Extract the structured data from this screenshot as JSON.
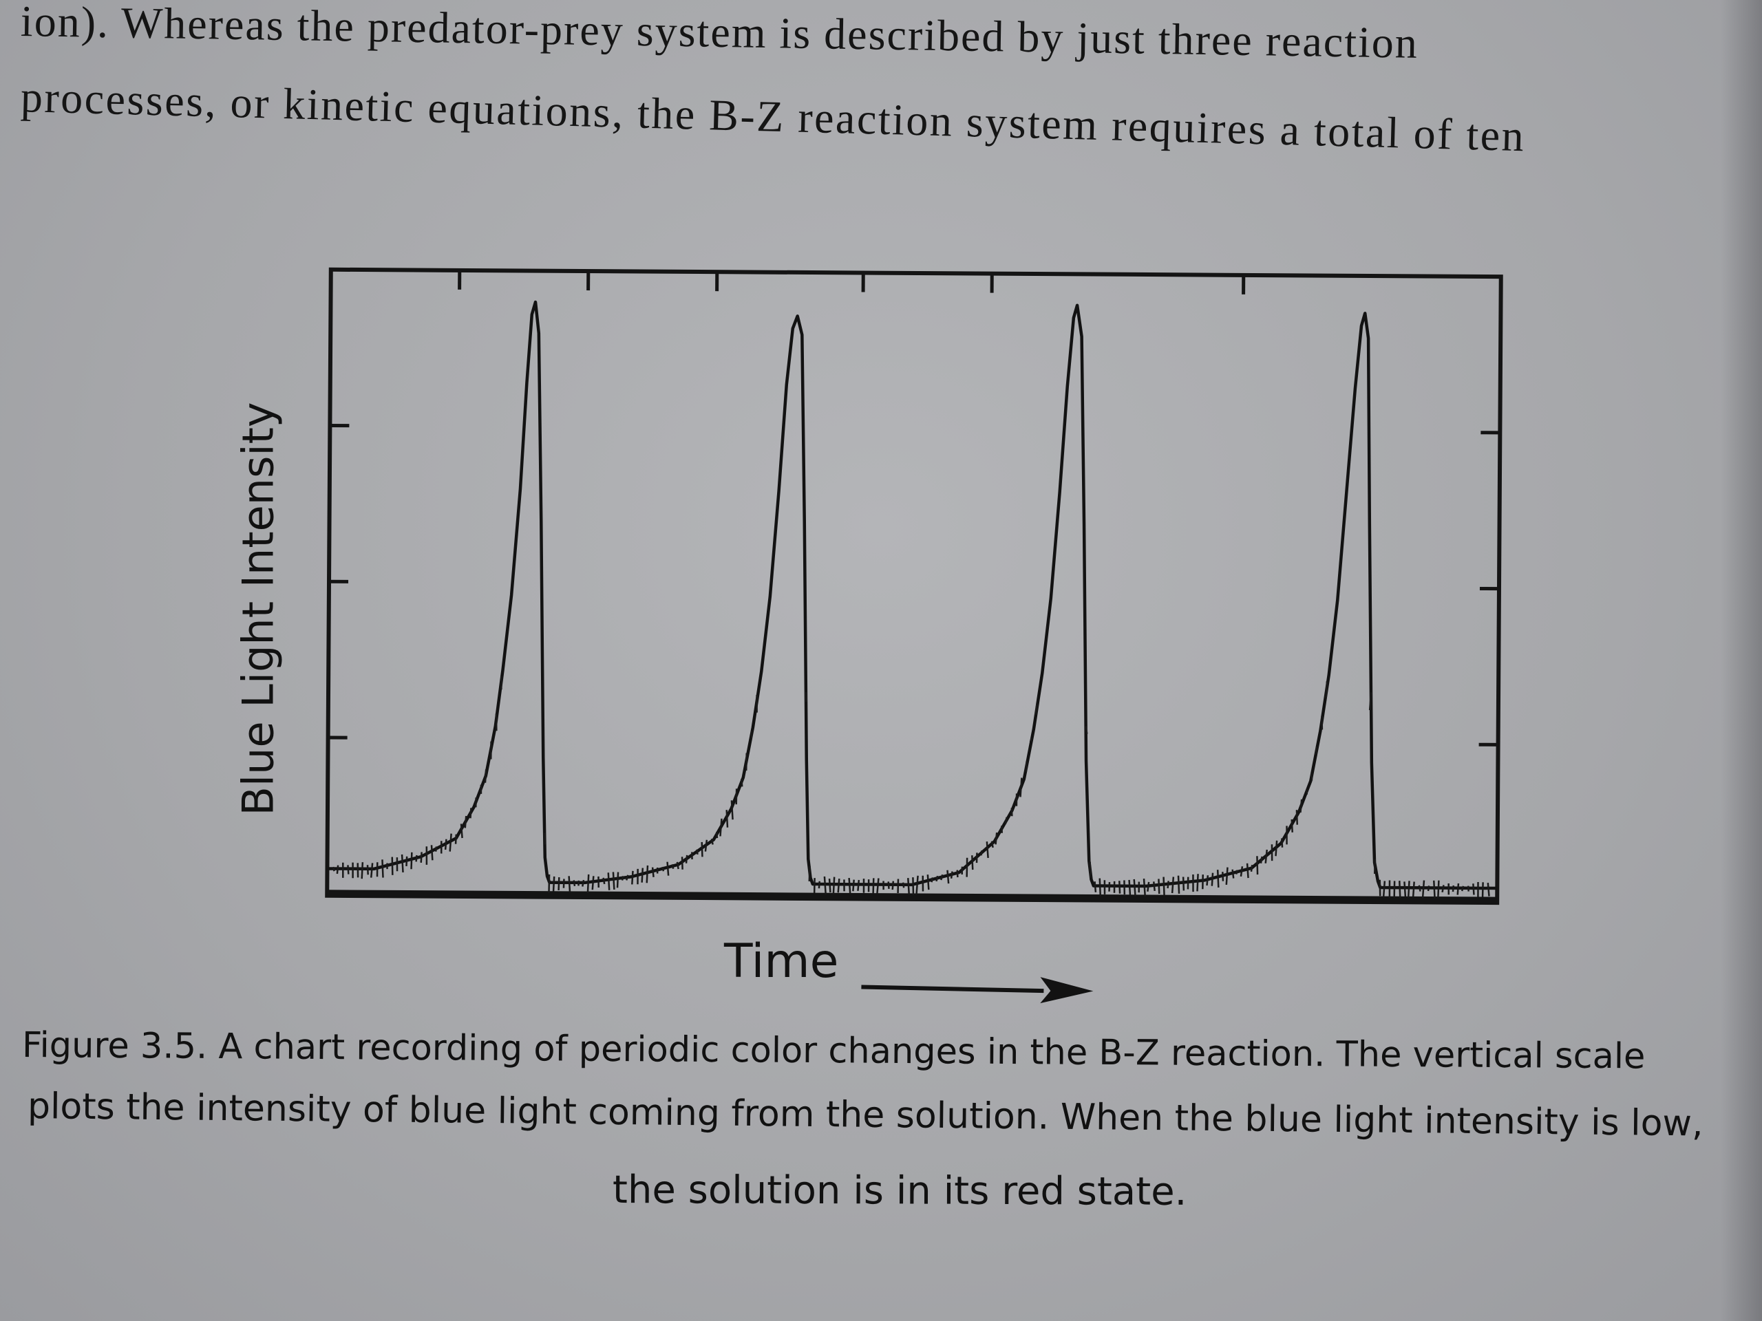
{
  "body_text": {
    "line1": "ion). Whereas the predator-prey system is described by just three reaction",
    "line2": "processes, or kinetic equations, the B-Z reaction system requires a total of ten"
  },
  "chart_data": {
    "type": "line",
    "xlabel": "Time",
    "ylabel": "Blue Light Intensity",
    "xlim": [
      0,
      1
    ],
    "ylim": [
      0,
      1
    ],
    "grid": false,
    "legend": "none",
    "tick_labels": "none",
    "x_ticks_top": [
      0.11,
      0.22,
      0.33,
      0.455,
      0.565,
      0.78
    ],
    "y_ticks": [
      0.25,
      0.5,
      0.75
    ],
    "series": [
      {
        "x": [
          0.0,
          0.04,
          0.08,
          0.11,
          0.125,
          0.135,
          0.143,
          0.149,
          0.156,
          0.163,
          0.168,
          0.172,
          0.175,
          0.178,
          0.181,
          0.184,
          0.186,
          0.188,
          0.19,
          0.198,
          0.22,
          0.26,
          0.3,
          0.33,
          0.345,
          0.355,
          0.363,
          0.37,
          0.377,
          0.384,
          0.39,
          0.395,
          0.399,
          0.403,
          0.406,
          0.409,
          0.411,
          0.413,
          0.415,
          0.42,
          0.45,
          0.5,
          0.54,
          0.57,
          0.585,
          0.595,
          0.603,
          0.61,
          0.617,
          0.624,
          0.63,
          0.635,
          0.638,
          0.642,
          0.645,
          0.648,
          0.651,
          0.653,
          0.655,
          0.66,
          0.7,
          0.75,
          0.79,
          0.815,
          0.83,
          0.84,
          0.848,
          0.855,
          0.862,
          0.869,
          0.876,
          0.881,
          0.884,
          0.887,
          0.889,
          0.892,
          0.895,
          0.898,
          0.9,
          0.91,
          0.95,
          1.0
        ],
        "y": [
          0.04,
          0.04,
          0.06,
          0.09,
          0.14,
          0.19,
          0.27,
          0.36,
          0.48,
          0.65,
          0.82,
          0.93,
          0.95,
          0.9,
          0.6,
          0.22,
          0.06,
          0.03,
          0.02,
          0.02,
          0.02,
          0.03,
          0.05,
          0.09,
          0.14,
          0.19,
          0.27,
          0.36,
          0.48,
          0.65,
          0.82,
          0.91,
          0.93,
          0.9,
          0.6,
          0.22,
          0.06,
          0.03,
          0.02,
          0.02,
          0.02,
          0.02,
          0.04,
          0.09,
          0.14,
          0.19,
          0.27,
          0.36,
          0.48,
          0.65,
          0.82,
          0.93,
          0.95,
          0.9,
          0.6,
          0.22,
          0.06,
          0.03,
          0.02,
          0.02,
          0.02,
          0.03,
          0.05,
          0.09,
          0.14,
          0.19,
          0.27,
          0.36,
          0.48,
          0.65,
          0.82,
          0.92,
          0.94,
          0.9,
          0.6,
          0.22,
          0.06,
          0.03,
          0.02,
          0.02,
          0.02,
          0.02
        ]
      }
    ]
  },
  "caption": {
    "line1": "Figure 3.5. A chart recording of periodic color changes in the B-Z reaction. The vertical scale",
    "line2": "plots the intensity of blue light coming from the solution. When the blue light intensity is low,",
    "line3": "the solution is in its red state."
  }
}
